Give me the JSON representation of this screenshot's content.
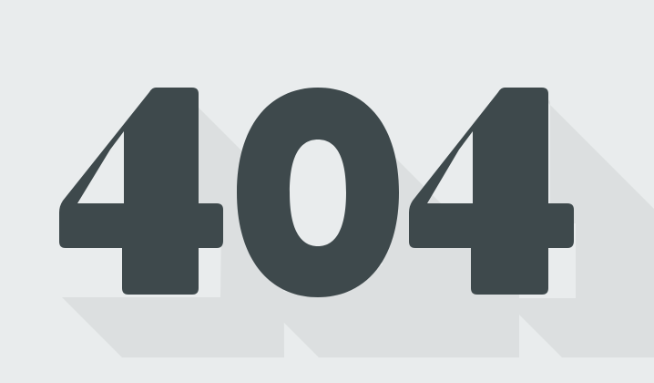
{
  "error": {
    "code": "404"
  },
  "colors": {
    "background": "#e9eced",
    "digits": "#3e494c",
    "long_shadow": "#dcdfe0"
  },
  "style": {
    "long_shadow_direction": "bottom-right"
  }
}
